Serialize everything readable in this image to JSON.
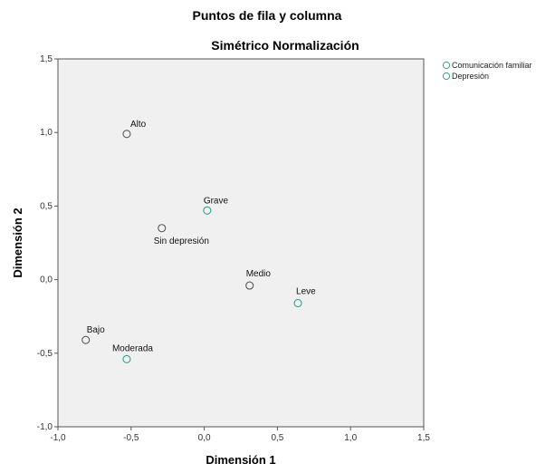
{
  "chart_data": {
    "type": "scatter",
    "title": "Puntos de fila y columna",
    "subtitle": "Simétrico Normalización",
    "xlabel": "Dimensión 1",
    "ylabel": "Dimensión 2",
    "xlim": [
      -1.0,
      1.5
    ],
    "ylim": [
      -1.0,
      1.5
    ],
    "xticks": [
      "-1,0",
      "-0,5",
      "0,0",
      "0,5",
      "1,0",
      "1,5"
    ],
    "yticks": [
      "-1,0",
      "-0,5",
      "0,0",
      "0,5",
      "1,0",
      "1,5"
    ],
    "grid": false,
    "legend_position": "top-right outside",
    "series": [
      {
        "name": "Comunicación familiar",
        "color": "#5a5a5a",
        "points": [
          {
            "label": "Alto",
            "x": -0.53,
            "y": 0.99
          },
          {
            "label": "Sin depresión",
            "x": -0.29,
            "y": 0.35
          },
          {
            "label": "Medio",
            "x": 0.31,
            "y": -0.04
          },
          {
            "label": "Bajo",
            "x": -0.81,
            "y": -0.41
          }
        ]
      },
      {
        "name": "Depresión",
        "color": "#3aa08a",
        "points": [
          {
            "label": "Grave",
            "x": 0.02,
            "y": 0.47
          },
          {
            "label": "Leve",
            "x": 0.64,
            "y": -0.16
          },
          {
            "label": "Moderada",
            "x": -0.53,
            "y": -0.54
          }
        ]
      }
    ]
  }
}
